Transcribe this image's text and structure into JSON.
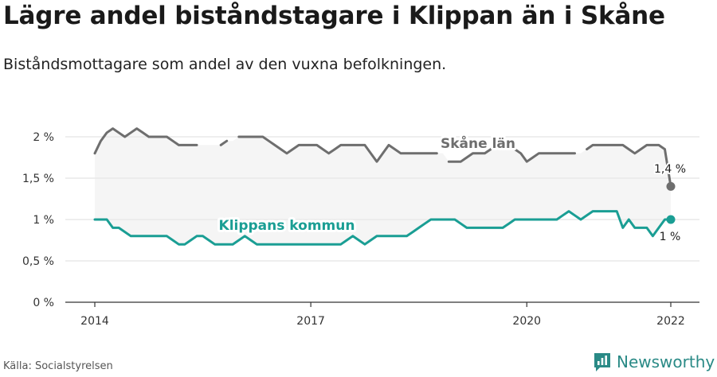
{
  "title": "Lägre andel biståndstagare i Klippan än i Skåne",
  "subtitle": "Biståndsmottagare som andel av den vuxna befolkningen.",
  "source": "Källa: Socialstyrelsen",
  "brand": {
    "name": "Newsworthy",
    "icon": "newsworthy-logo-icon",
    "color": "#2a8a86"
  },
  "chart_data": {
    "type": "line",
    "title": "",
    "xlabel": "",
    "ylabel": "",
    "x_ticks": [
      "2014",
      "2017",
      "2020",
      "2022"
    ],
    "y_ticks": [
      "0 %",
      "0,5 %",
      "1 %",
      "1,5 %",
      "2 %"
    ],
    "y_tick_values": [
      0,
      0.5,
      1,
      1.5,
      2
    ],
    "xlim": [
      "2014-01",
      "2022-01"
    ],
    "ylim": [
      0,
      2.15
    ],
    "grid": true,
    "legend": "inline labels",
    "band_color": "#ebebeb",
    "series": [
      {
        "name": "Skåne län",
        "color": "#6e6e6e",
        "end_label": "1,4 %",
        "points": [
          [
            "2014-01",
            1.8
          ],
          [
            "2014-02",
            1.95
          ],
          [
            "2014-03",
            2.05
          ],
          [
            "2014-04",
            2.1
          ],
          [
            "2014-05",
            2.05
          ],
          [
            "2014-06",
            2.0
          ],
          [
            "2014-07",
            2.05
          ],
          [
            "2014-08",
            2.1
          ],
          [
            "2014-09",
            2.05
          ],
          [
            "2014-10",
            2.0
          ],
          [
            "2014-11",
            2.0
          ],
          [
            "2014-12",
            2.0
          ],
          [
            "2015-01",
            2.0
          ],
          [
            "2015-02",
            1.95
          ],
          [
            "2015-03",
            1.9
          ],
          [
            "2015-04",
            1.9
          ],
          [
            "2015-05",
            1.9
          ],
          [
            "2015-06",
            1.9
          ],
          [
            "2015-07",
            null
          ],
          [
            "2015-08",
            null
          ],
          [
            "2015-09",
            null
          ],
          [
            "2015-10",
            1.9
          ],
          [
            "2015-11",
            1.95
          ],
          [
            "2015-12",
            null
          ],
          [
            "2016-01",
            2.0
          ],
          [
            "2016-02",
            2.0
          ],
          [
            "2016-03",
            2.0
          ],
          [
            "2016-04",
            2.0
          ],
          [
            "2016-05",
            2.0
          ],
          [
            "2016-06",
            1.95
          ],
          [
            "2016-07",
            1.9
          ],
          [
            "2016-08",
            1.85
          ],
          [
            "2016-09",
            1.8
          ],
          [
            "2016-10",
            1.85
          ],
          [
            "2016-11",
            1.9
          ],
          [
            "2016-12",
            1.9
          ],
          [
            "2017-01",
            1.9
          ],
          [
            "2017-02",
            1.9
          ],
          [
            "2017-03",
            1.85
          ],
          [
            "2017-04",
            1.8
          ],
          [
            "2017-05",
            1.85
          ],
          [
            "2017-06",
            1.9
          ],
          [
            "2017-07",
            1.9
          ],
          [
            "2017-08",
            1.9
          ],
          [
            "2017-09",
            1.9
          ],
          [
            "2017-10",
            1.9
          ],
          [
            "2017-11",
            1.8
          ],
          [
            "2017-12",
            1.7
          ],
          [
            "2018-01",
            1.8
          ],
          [
            "2018-02",
            1.9
          ],
          [
            "2018-03",
            1.85
          ],
          [
            "2018-04",
            1.8
          ],
          [
            "2018-05",
            1.8
          ],
          [
            "2018-06",
            1.8
          ],
          [
            "2018-07",
            1.8
          ],
          [
            "2018-08",
            1.8
          ],
          [
            "2018-09",
            1.8
          ],
          [
            "2018-10",
            1.8
          ],
          [
            "2018-11",
            null
          ],
          [
            "2018-12",
            1.7
          ],
          [
            "2019-01",
            1.7
          ],
          [
            "2019-02",
            1.7
          ],
          [
            "2019-03",
            1.75
          ],
          [
            "2019-04",
            1.8
          ],
          [
            "2019-05",
            1.8
          ],
          [
            "2019-06",
            1.8
          ],
          [
            "2019-07",
            1.85
          ],
          [
            "2019-08",
            1.9
          ],
          [
            "2019-09",
            1.9
          ],
          [
            "2019-10",
            1.9
          ],
          [
            "2019-11",
            1.85
          ],
          [
            "2019-12",
            1.8
          ],
          [
            "2020-01",
            1.7
          ],
          [
            "2020-02",
            1.75
          ],
          [
            "2020-03",
            1.8
          ],
          [
            "2020-04",
            1.8
          ],
          [
            "2020-05",
            1.8
          ],
          [
            "2020-06",
            1.8
          ],
          [
            "2020-07",
            1.8
          ],
          [
            "2020-08",
            1.8
          ],
          [
            "2020-09",
            1.8
          ],
          [
            "2020-10",
            null
          ],
          [
            "2020-11",
            1.85
          ],
          [
            "2020-12",
            1.9
          ],
          [
            "2021-01",
            1.9
          ],
          [
            "2021-02",
            1.9
          ],
          [
            "2021-03",
            1.9
          ],
          [
            "2021-04",
            1.9
          ],
          [
            "2021-05",
            1.9
          ],
          [
            "2021-06",
            1.85
          ],
          [
            "2021-07",
            1.8
          ],
          [
            "2021-08",
            1.85
          ],
          [
            "2021-09",
            1.9
          ],
          [
            "2021-10",
            1.9
          ],
          [
            "2021-11",
            1.9
          ],
          [
            "2021-12",
            1.85
          ],
          [
            "2022-01",
            1.4
          ]
        ]
      },
      {
        "name": "Klippans kommun",
        "color": "#1a9e94",
        "end_label": "1 %",
        "points": [
          [
            "2014-01",
            1.0
          ],
          [
            "2014-02",
            1.0
          ],
          [
            "2014-03",
            1.0
          ],
          [
            "2014-04",
            0.9
          ],
          [
            "2014-05",
            0.9
          ],
          [
            "2014-06",
            0.85
          ],
          [
            "2014-07",
            0.8
          ],
          [
            "2014-08",
            0.8
          ],
          [
            "2014-09",
            0.8
          ],
          [
            "2014-10",
            0.8
          ],
          [
            "2014-11",
            0.8
          ],
          [
            "2014-12",
            0.8
          ],
          [
            "2015-01",
            0.8
          ],
          [
            "2015-02",
            0.75
          ],
          [
            "2015-03",
            0.7
          ],
          [
            "2015-04",
            0.7
          ],
          [
            "2015-05",
            0.75
          ],
          [
            "2015-06",
            0.8
          ],
          [
            "2015-07",
            0.8
          ],
          [
            "2015-08",
            0.75
          ],
          [
            "2015-09",
            0.7
          ],
          [
            "2015-10",
            0.7
          ],
          [
            "2015-11",
            0.7
          ],
          [
            "2015-12",
            0.7
          ],
          [
            "2016-01",
            0.75
          ],
          [
            "2016-02",
            0.8
          ],
          [
            "2016-03",
            0.75
          ],
          [
            "2016-04",
            0.7
          ],
          [
            "2016-05",
            0.7
          ],
          [
            "2016-06",
            0.7
          ],
          [
            "2016-07",
            0.7
          ],
          [
            "2016-08",
            0.7
          ],
          [
            "2016-09",
            0.7
          ],
          [
            "2016-10",
            0.7
          ],
          [
            "2016-11",
            0.7
          ],
          [
            "2016-12",
            0.7
          ],
          [
            "2017-01",
            0.7
          ],
          [
            "2017-02",
            0.7
          ],
          [
            "2017-03",
            0.7
          ],
          [
            "2017-04",
            0.7
          ],
          [
            "2017-05",
            0.7
          ],
          [
            "2017-06",
            0.7
          ],
          [
            "2017-07",
            0.75
          ],
          [
            "2017-08",
            0.8
          ],
          [
            "2017-09",
            0.75
          ],
          [
            "2017-10",
            0.7
          ],
          [
            "2017-11",
            0.75
          ],
          [
            "2017-12",
            0.8
          ],
          [
            "2018-01",
            0.8
          ],
          [
            "2018-02",
            0.8
          ],
          [
            "2018-03",
            0.8
          ],
          [
            "2018-04",
            0.8
          ],
          [
            "2018-05",
            0.8
          ],
          [
            "2018-06",
            0.85
          ],
          [
            "2018-07",
            0.9
          ],
          [
            "2018-08",
            0.95
          ],
          [
            "2018-09",
            1.0
          ],
          [
            "2018-10",
            1.0
          ],
          [
            "2018-11",
            1.0
          ],
          [
            "2018-12",
            1.0
          ],
          [
            "2019-01",
            1.0
          ],
          [
            "2019-02",
            0.95
          ],
          [
            "2019-03",
            0.9
          ],
          [
            "2019-04",
            0.9
          ],
          [
            "2019-05",
            0.9
          ],
          [
            "2019-06",
            0.9
          ],
          [
            "2019-07",
            0.9
          ],
          [
            "2019-08",
            0.9
          ],
          [
            "2019-09",
            0.9
          ],
          [
            "2019-10",
            0.95
          ],
          [
            "2019-11",
            1.0
          ],
          [
            "2019-12",
            1.0
          ],
          [
            "2020-01",
            1.0
          ],
          [
            "2020-02",
            1.0
          ],
          [
            "2020-03",
            1.0
          ],
          [
            "2020-04",
            1.0
          ],
          [
            "2020-05",
            1.0
          ],
          [
            "2020-06",
            1.0
          ],
          [
            "2020-07",
            1.05
          ],
          [
            "2020-08",
            1.1
          ],
          [
            "2020-09",
            1.05
          ],
          [
            "2020-10",
            1.0
          ],
          [
            "2020-11",
            1.05
          ],
          [
            "2020-12",
            1.1
          ],
          [
            "2021-01",
            1.1
          ],
          [
            "2021-02",
            1.1
          ],
          [
            "2021-03",
            1.1
          ],
          [
            "2021-04",
            1.1
          ],
          [
            "2021-05",
            0.9
          ],
          [
            "2021-06",
            1.0
          ],
          [
            "2021-07",
            0.9
          ],
          [
            "2021-08",
            0.9
          ],
          [
            "2021-09",
            0.9
          ],
          [
            "2021-10",
            0.8
          ],
          [
            "2021-11",
            0.9
          ],
          [
            "2021-12",
            1.0
          ],
          [
            "2022-01",
            1.0
          ]
        ]
      }
    ]
  }
}
